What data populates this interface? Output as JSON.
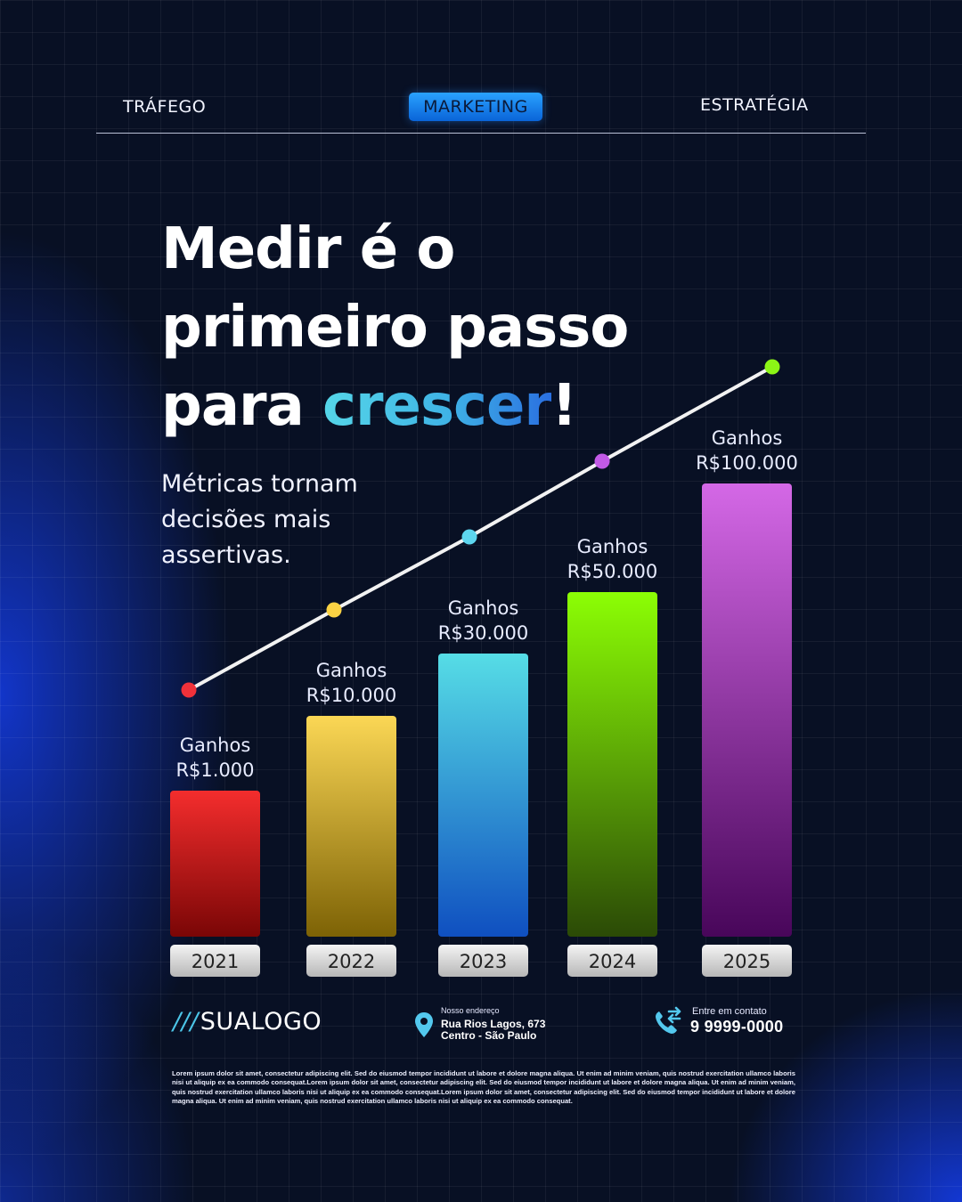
{
  "nav": {
    "items": [
      {
        "label": "TRÁFEGO",
        "active": false
      },
      {
        "label": "MARKETING",
        "active": true
      },
      {
        "label": "ESTRATÉGIA",
        "active": false
      }
    ]
  },
  "headline": {
    "line1": "Medir é o",
    "line2": "primeiro passo",
    "line3_pre": "para ",
    "line3_highlight": "crescer",
    "line3_post": "!"
  },
  "subtitle": "Métricas tornam decisões mais assertivas.",
  "chart_data": {
    "type": "bar",
    "categories": [
      "2021",
      "2022",
      "2023",
      "2024",
      "2025"
    ],
    "values": [
      1000,
      10000,
      30000,
      50000,
      100000
    ],
    "data_labels": [
      {
        "line1": "Ganhos",
        "line2": "R$1.000"
      },
      {
        "line1": "Ganhos",
        "line2": "R$10.000"
      },
      {
        "line1": "Ganhos",
        "line2": "R$30.000"
      },
      {
        "line1": "Ganhos",
        "line2": "R$50.000"
      },
      {
        "line1": "Ganhos",
        "line2": "R$100.000"
      }
    ],
    "bar_colors": [
      [
        "#f42d2d",
        "#7a0606"
      ],
      [
        "#fbd755",
        "#7d6205"
      ],
      [
        "#56dde6",
        "#0f4fc0"
      ],
      [
        "#8cff05",
        "#2b4a06"
      ],
      [
        "#d468e6",
        "#48065a"
      ]
    ],
    "trend_line": {
      "color": "#f2f2f2",
      "marker_colors": [
        "#f0313a",
        "#fbd344",
        "#5dd6ef",
        "#c25ae6",
        "#8cf516"
      ]
    },
    "title": "",
    "xlabel": "",
    "ylabel": ""
  },
  "footer": {
    "logo_slashes": "///",
    "logo_text": "SUALOGO",
    "address_label": "Nosso endereço",
    "address_line1": "Rua Rios Lagos, 673",
    "address_line2": "Centro - São Paulo",
    "contact_label": "Entre em contato",
    "phone": "9 9999-0000",
    "disclaimer": "Lorem ipsum dolor sit amet, consectetur adipiscing elit. Sed do eiusmod tempor incididunt ut labore et dolore magna aliqua. Ut enim ad minim veniam, quis nostrud exercitation ullamco laboris nisi ut aliquip ex ea commodo consequat.Lorem ipsum dolor sit amet, consectetur adipiscing elit. Sed do eiusmod tempor incididunt ut labore et dolore magna aliqua. Ut enim ad minim veniam, quis nostrud exercitation ullamco laboris nisi ut aliquip ex ea commodo consequat.Lorem ipsum dolor sit amet, consectetur adipiscing elit. Sed do eiusmod tempor incididunt ut labore et dolore magna aliqua. Ut enim ad minim veniam, quis nostrud exercitation ullamco laboris nisi ut aliquip ex ea commodo consequat.",
    "icon_address": "map-pin-icon",
    "icon_contact": "phone-transfer-icon"
  }
}
